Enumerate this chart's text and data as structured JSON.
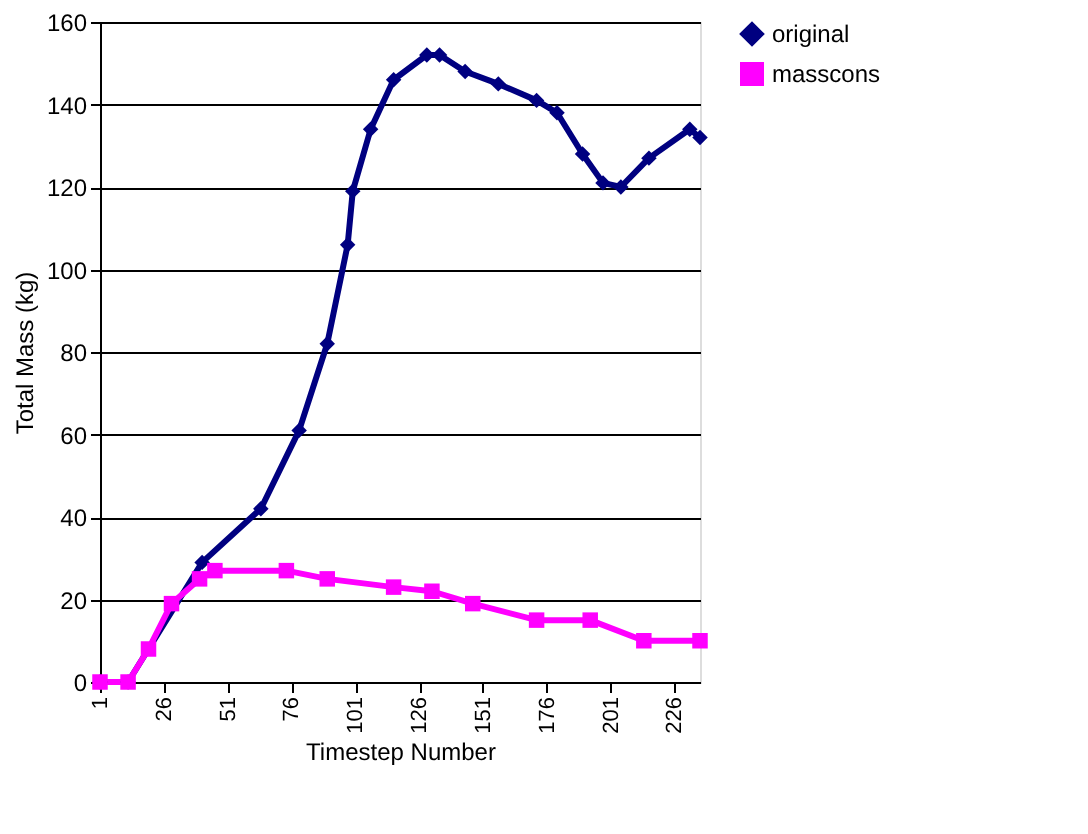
{
  "chart_data": {
    "type": "line",
    "xlabel": "Timestep Number",
    "ylabel": "Total Mass (kg)",
    "xlim": [
      1,
      236
    ],
    "xticks": [
      1,
      26,
      51,
      76,
      101,
      126,
      151,
      176,
      201,
      226
    ],
    "ylim": [
      0,
      160
    ],
    "yticks": [
      0,
      20,
      40,
      60,
      80,
      100,
      120,
      140,
      160
    ],
    "grid": "y",
    "legend": "right",
    "line_style": "solid",
    "series": [
      {
        "name": "original",
        "color": "#000080",
        "marker": "diamond",
        "x": [
          1,
          12,
          41,
          64,
          79,
          90,
          98,
          100,
          107,
          116,
          129,
          134,
          144,
          157,
          172,
          180,
          190,
          198,
          205,
          216,
          232,
          236
        ],
        "values": [
          0,
          0,
          29,
          42,
          61,
          82,
          106,
          119,
          134,
          146,
          152,
          152,
          148,
          145,
          141,
          138,
          128,
          121,
          120,
          127,
          134,
          132
        ]
      },
      {
        "name": "masscons",
        "color": "#ff00ff",
        "marker": "square",
        "x": [
          1,
          12,
          20,
          29,
          40,
          46,
          74,
          90,
          116,
          131,
          147,
          172,
          193,
          214,
          236
        ],
        "values": [
          0,
          0,
          8,
          19,
          25,
          27,
          27,
          25,
          23,
          22,
          19,
          15,
          15,
          10,
          10
        ]
      }
    ]
  }
}
